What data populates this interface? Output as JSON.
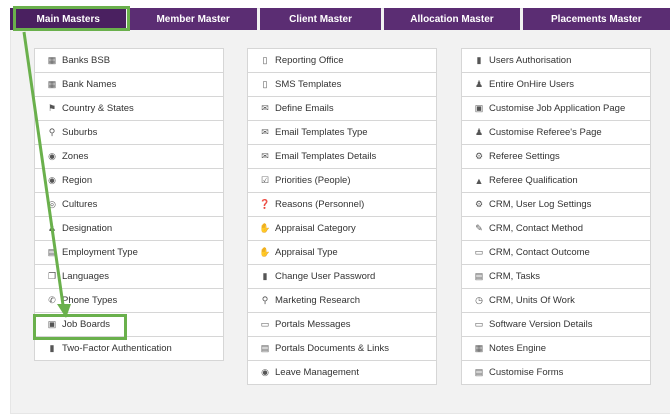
{
  "tabs": [
    {
      "label": "Main Masters"
    },
    {
      "label": "Member Master"
    },
    {
      "label": "Client Master"
    },
    {
      "label": "Allocation Master"
    },
    {
      "label": "Placements Master"
    }
  ],
  "columns": [
    [
      {
        "icon": "bank-icon",
        "glyph": "▦",
        "label": "Banks BSB"
      },
      {
        "icon": "bank-icon",
        "glyph": "▦",
        "label": "Bank Names"
      },
      {
        "icon": "flag-icon",
        "glyph": "⚑",
        "label": "Country & States"
      },
      {
        "icon": "map-marker-icon",
        "glyph": "⚲",
        "label": "Suburbs"
      },
      {
        "icon": "globe-icon",
        "glyph": "◉",
        "label": "Zones"
      },
      {
        "icon": "globe-icon",
        "glyph": "◉",
        "label": "Region"
      },
      {
        "icon": "culture-icon",
        "glyph": "◎",
        "label": "Cultures"
      },
      {
        "icon": "user-icon",
        "glyph": "♟",
        "label": "Designation"
      },
      {
        "icon": "id-card-icon",
        "glyph": "▤",
        "label": "Employment Type"
      },
      {
        "icon": "language-icon",
        "glyph": "❐",
        "label": "Languages"
      },
      {
        "icon": "phone-icon",
        "glyph": "✆",
        "label": "Phone Types"
      },
      {
        "icon": "briefcase-icon",
        "glyph": "▣",
        "label": "Job Boards"
      },
      {
        "icon": "lock-icon",
        "glyph": "▮",
        "label": "Two-Factor Authentication"
      }
    ],
    [
      {
        "icon": "building-icon",
        "glyph": "▯",
        "label": "Reporting Office"
      },
      {
        "icon": "mobile-icon",
        "glyph": "▯",
        "label": "SMS Templates"
      },
      {
        "icon": "envelope-icon",
        "glyph": "✉",
        "label": "Define Emails"
      },
      {
        "icon": "envelope-icon",
        "glyph": "✉",
        "label": "Email Templates Type"
      },
      {
        "icon": "envelope-icon",
        "glyph": "✉",
        "label": "Email Templates Details"
      },
      {
        "icon": "checkbox-icon",
        "glyph": "☑",
        "label": "Priorities (People)"
      },
      {
        "icon": "question-icon",
        "glyph": "❓",
        "label": "Reasons (Personnel)"
      },
      {
        "icon": "thumbs-up-icon",
        "glyph": "✋",
        "label": "Appraisal Category"
      },
      {
        "icon": "thumbs-up-icon",
        "glyph": "✋",
        "label": "Appraisal Type"
      },
      {
        "icon": "unlock-icon",
        "glyph": "▮",
        "label": "Change User Password"
      },
      {
        "icon": "search-icon",
        "glyph": "⚲",
        "label": "Marketing Research"
      },
      {
        "icon": "monitor-icon",
        "glyph": "▭",
        "label": "Portals Messages"
      },
      {
        "icon": "document-icon",
        "glyph": "▤",
        "label": "Portals Documents & Links"
      },
      {
        "icon": "globe-icon",
        "glyph": "◉",
        "label": "Leave Management"
      }
    ],
    [
      {
        "icon": "lock-icon",
        "glyph": "▮",
        "label": "Users Authorisation"
      },
      {
        "icon": "users-icon",
        "glyph": "♟",
        "label": "Entire OnHire Users"
      },
      {
        "icon": "briefcase-icon",
        "glyph": "▣",
        "label": "Customise Job Application Page"
      },
      {
        "icon": "user-plus-icon",
        "glyph": "♟",
        "label": "Customise Referee's Page"
      },
      {
        "icon": "cogs-icon",
        "glyph": "⚙",
        "label": "Referee Settings"
      },
      {
        "icon": "graduation-cap-icon",
        "glyph": "▲",
        "label": "Referee Qualification"
      },
      {
        "icon": "gear-icon",
        "glyph": "⚙",
        "label": "CRM, User Log Settings"
      },
      {
        "icon": "wrench-icon",
        "glyph": "✎",
        "label": "CRM, Contact Method"
      },
      {
        "icon": "comment-icon",
        "glyph": "▭",
        "label": "CRM, Contact Outcome"
      },
      {
        "icon": "list-icon",
        "glyph": "▤",
        "label": "CRM, Tasks"
      },
      {
        "icon": "clock-icon",
        "glyph": "◷",
        "label": "CRM, Units Of Work"
      },
      {
        "icon": "monitor-icon",
        "glyph": "▭",
        "label": "Software Version Details"
      },
      {
        "icon": "grid-icon",
        "glyph": "▦",
        "label": "Notes Engine"
      },
      {
        "icon": "document-icon",
        "glyph": "▤",
        "label": "Customise Forms"
      }
    ]
  ],
  "colors": {
    "tab": "#5b2d73",
    "tab_active": "#4a2060",
    "highlight": "#6ab04c"
  }
}
